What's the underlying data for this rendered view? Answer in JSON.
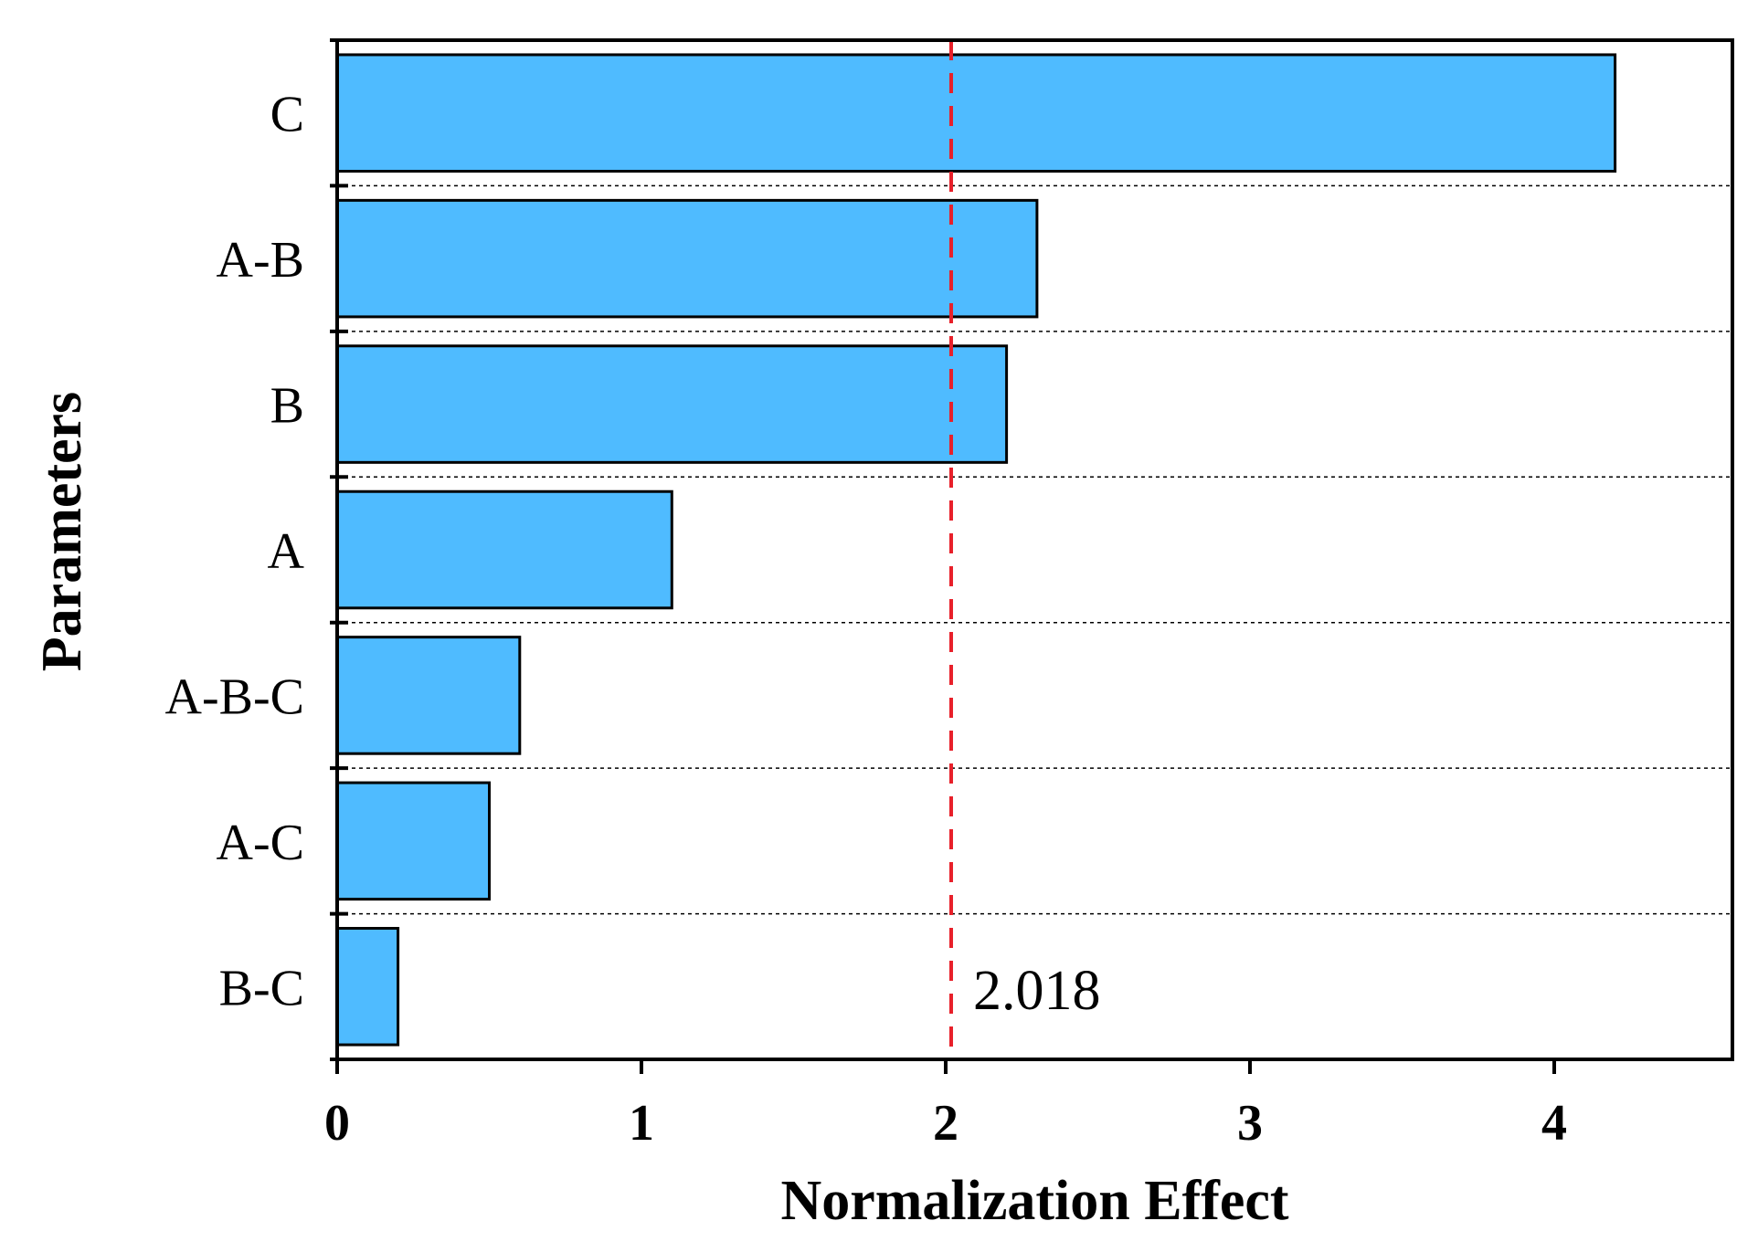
{
  "chart_data": {
    "type": "bar",
    "orientation": "horizontal",
    "categories": [
      "C",
      "A-B",
      "B",
      "A",
      "A-B-C",
      "A-C",
      "B-C"
    ],
    "values": [
      4.2,
      2.3,
      2.2,
      1.1,
      0.6,
      0.5,
      0.2
    ],
    "xlabel": "Normalization Effect",
    "ylabel": "Parameters",
    "xlim": [
      0,
      4.6
    ],
    "xticks": [
      0,
      1,
      2,
      3,
      4
    ],
    "reference_line": {
      "value": 2.018,
      "label": "2.018",
      "color": "#e8202a",
      "style": "dashed"
    },
    "bar_color": "#4fbbff",
    "bar_edge_color": "#000000",
    "grid": "horizontal dotted between categories"
  }
}
